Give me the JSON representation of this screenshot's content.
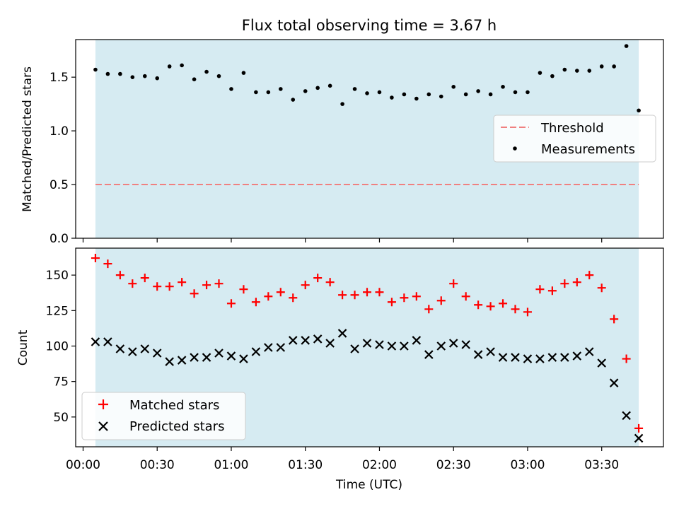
{
  "title": "Flux total observing time = 3.67 h",
  "colors": {
    "band": "#add8e6",
    "threshold": "#f08080",
    "matched": "#ff0000",
    "predicted": "#000000",
    "measure": "#000000"
  },
  "chart_data": [
    {
      "type": "scatter",
      "ylabel": "Matched/Predicted stars",
      "xlim": [
        -3,
        235
      ],
      "ylim": [
        0,
        1.85
      ],
      "yticks": [
        0.0,
        0.5,
        1.0,
        1.5
      ],
      "ytick_labels": [
        "0.0",
        "0.5",
        "1.0",
        "1.5"
      ],
      "shaded_x": [
        5,
        225
      ],
      "threshold": {
        "name": "Threshold",
        "value": 0.5,
        "x": [
          5,
          225
        ]
      },
      "legend": [
        "Threshold",
        "Measurements"
      ],
      "legend_loc": "center-right",
      "series": [
        {
          "name": "Measurements",
          "x": [
            5,
            10,
            15,
            20,
            25,
            30,
            35,
            40,
            45,
            50,
            55,
            60,
            65,
            70,
            75,
            80,
            85,
            90,
            95,
            100,
            105,
            110,
            115,
            120,
            125,
            130,
            135,
            140,
            145,
            150,
            155,
            160,
            165,
            170,
            175,
            180,
            185,
            190,
            195,
            200,
            205,
            210,
            215,
            220,
            225
          ],
          "values": [
            1.57,
            1.53,
            1.53,
            1.5,
            1.51,
            1.49,
            1.6,
            1.61,
            1.48,
            1.55,
            1.51,
            1.39,
            1.54,
            1.36,
            1.36,
            1.39,
            1.29,
            1.37,
            1.4,
            1.42,
            1.25,
            1.39,
            1.35,
            1.36,
            1.31,
            1.34,
            1.3,
            1.34,
            1.32,
            1.41,
            1.34,
            1.37,
            1.34,
            1.41,
            1.36,
            1.36,
            1.54,
            1.51,
            1.57,
            1.56,
            1.56,
            1.6,
            1.6,
            1.79,
            1.19
          ]
        }
      ]
    },
    {
      "type": "scatter",
      "ylabel": "Count",
      "xlabel": "Time (UTC)",
      "xlim": [
        -3,
        235
      ],
      "ylim": [
        29,
        169
      ],
      "xticks": [
        0,
        30,
        60,
        90,
        120,
        150,
        180,
        210
      ],
      "xtick_labels": [
        "00:00",
        "00:30",
        "01:00",
        "01:30",
        "02:00",
        "02:30",
        "03:00",
        "03:30"
      ],
      "yticks": [
        50,
        75,
        100,
        125,
        150
      ],
      "ytick_labels": [
        "50",
        "75",
        "100",
        "125",
        "150"
      ],
      "shaded_x": [
        5,
        225
      ],
      "legend": [
        "Matched stars",
        "Predicted stars"
      ],
      "legend_loc": "lower-left",
      "series": [
        {
          "name": "Matched stars",
          "x": [
            5,
            10,
            15,
            20,
            25,
            30,
            35,
            40,
            45,
            50,
            55,
            60,
            65,
            70,
            75,
            80,
            85,
            90,
            95,
            100,
            105,
            110,
            115,
            120,
            125,
            130,
            135,
            140,
            145,
            150,
            155,
            160,
            165,
            170,
            175,
            180,
            185,
            190,
            195,
            200,
            205,
            210,
            215,
            220,
            225
          ],
          "values": [
            162,
            158,
            150,
            144,
            148,
            142,
            142,
            145,
            137,
            143,
            144,
            130,
            140,
            131,
            135,
            138,
            134,
            143,
            148,
            145,
            136,
            136,
            138,
            138,
            131,
            134,
            135,
            126,
            132,
            144,
            135,
            129,
            128,
            130,
            126,
            124,
            140,
            139,
            144,
            145,
            150,
            141,
            119,
            91,
            42
          ]
        },
        {
          "name": "Predicted stars",
          "x": [
            5,
            10,
            15,
            20,
            25,
            30,
            35,
            40,
            45,
            50,
            55,
            60,
            65,
            70,
            75,
            80,
            85,
            90,
            95,
            100,
            105,
            110,
            115,
            120,
            125,
            130,
            135,
            140,
            145,
            150,
            155,
            160,
            165,
            170,
            175,
            180,
            185,
            190,
            195,
            200,
            205,
            210,
            215,
            220,
            225
          ],
          "values": [
            103,
            103,
            98,
            96,
            98,
            95,
            89,
            90,
            92,
            92,
            95,
            93,
            91,
            96,
            99,
            99,
            104,
            104,
            105,
            102,
            109,
            98,
            102,
            101,
            100,
            100,
            104,
            94,
            100,
            102,
            101,
            94,
            96,
            92,
            92,
            91,
            91,
            92,
            92,
            93,
            96,
            88,
            74,
            51,
            35
          ]
        }
      ]
    }
  ]
}
